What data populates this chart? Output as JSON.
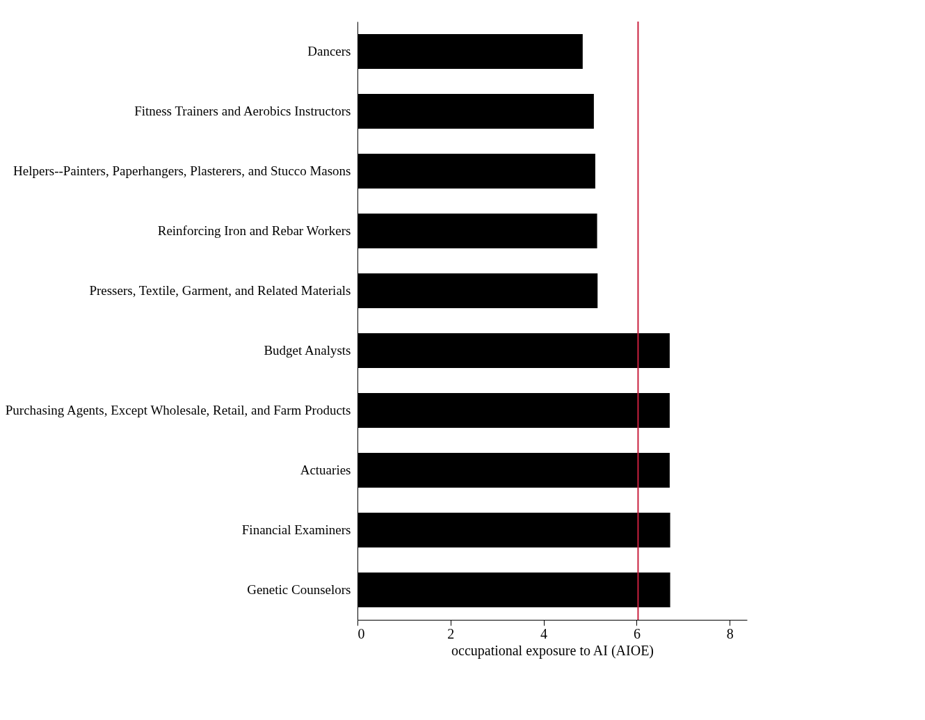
{
  "chart_data": {
    "type": "bar",
    "orientation": "horizontal",
    "xlabel": "occupational exposure to AI (AIOE)",
    "categories": [
      "Dancers",
      "Fitness Trainers and Aerobics Instructors",
      "Helpers--Painters, Paperhangers, Plasterers, and Stucco Masons",
      "Reinforcing Iron and Rebar Workers",
      "Pressers, Textile, Garment, and Related Materials",
      "Budget Analysts",
      "Purchasing Agents, Except Wholesale, Retail, and Farm Products",
      "Actuaries",
      "Financial Examiners",
      "Genetic Counselors"
    ],
    "values": [
      4.84,
      5.08,
      5.11,
      5.15,
      5.16,
      6.71,
      6.71,
      6.71,
      6.72,
      6.72
    ],
    "color": "#000000",
    "xlim": [
      0,
      8.37
    ],
    "xticks": [
      0,
      2,
      4,
      6,
      8
    ],
    "ref_lines": [
      {
        "axis": "x",
        "value": 6.03,
        "color": "#c8203f"
      }
    ],
    "grid": false
  }
}
